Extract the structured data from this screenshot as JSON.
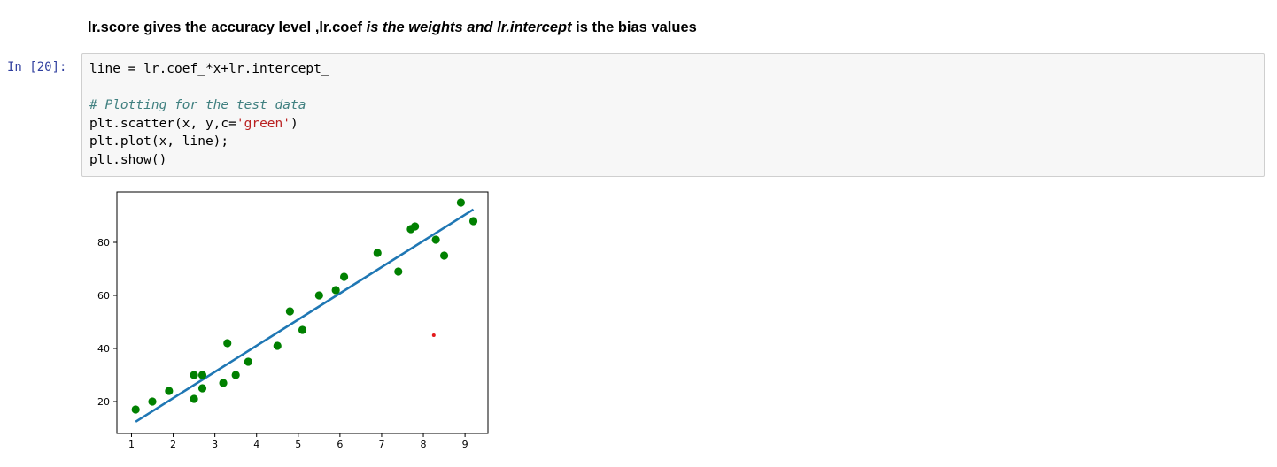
{
  "markdown": {
    "p1": "lr.score gives the accuracy level ,lr.coef ",
    "p2": "is the weights and lr.intercept",
    "p3": " is the bias values"
  },
  "cell": {
    "prompt": "In [20]:",
    "code": {
      "l1": "line = lr.coef_*x+lr.intercept_",
      "l3": "# Plotting for the test data",
      "l4a": "plt.scatter(x, y,c=",
      "l4b": "'green'",
      "l4c": ")",
      "l5": "plt.plot(x, line);",
      "l6": "plt.show()"
    }
  },
  "colors": {
    "scatter": "#008000",
    "line": "#1f77b4",
    "red_dot": "#e31a1c"
  },
  "chart_data": {
    "type": "scatter",
    "title": "",
    "xlabel": "",
    "ylabel": "",
    "xlim": [
      0.65,
      9.55
    ],
    "ylim": [
      8,
      99
    ],
    "xticks": [
      1,
      2,
      3,
      4,
      5,
      6,
      7,
      8,
      9
    ],
    "yticks": [
      20,
      40,
      60,
      80
    ],
    "grid": false,
    "legend": "none",
    "points": [
      {
        "x": 1.1,
        "y": 17
      },
      {
        "x": 1.5,
        "y": 20
      },
      {
        "x": 1.9,
        "y": 24
      },
      {
        "x": 2.5,
        "y": 21
      },
      {
        "x": 2.5,
        "y": 30
      },
      {
        "x": 2.7,
        "y": 25
      },
      {
        "x": 2.7,
        "y": 30
      },
      {
        "x": 3.2,
        "y": 27
      },
      {
        "x": 3.3,
        "y": 42
      },
      {
        "x": 3.5,
        "y": 30
      },
      {
        "x": 3.8,
        "y": 35
      },
      {
        "x": 4.5,
        "y": 41
      },
      {
        "x": 4.8,
        "y": 54
      },
      {
        "x": 5.1,
        "y": 47
      },
      {
        "x": 5.5,
        "y": 60
      },
      {
        "x": 5.9,
        "y": 62
      },
      {
        "x": 6.1,
        "y": 67
      },
      {
        "x": 6.9,
        "y": 76
      },
      {
        "x": 7.4,
        "y": 69
      },
      {
        "x": 7.7,
        "y": 85
      },
      {
        "x": 7.8,
        "y": 86
      },
      {
        "x": 8.3,
        "y": 81
      },
      {
        "x": 8.5,
        "y": 75
      },
      {
        "x": 8.9,
        "y": 95
      },
      {
        "x": 9.2,
        "y": 88
      }
    ],
    "line": [
      {
        "x": 1.1,
        "y": 12.4
      },
      {
        "x": 9.2,
        "y": 92.4
      }
    ],
    "extra_point": {
      "x": 8.25,
      "y": 45
    }
  }
}
